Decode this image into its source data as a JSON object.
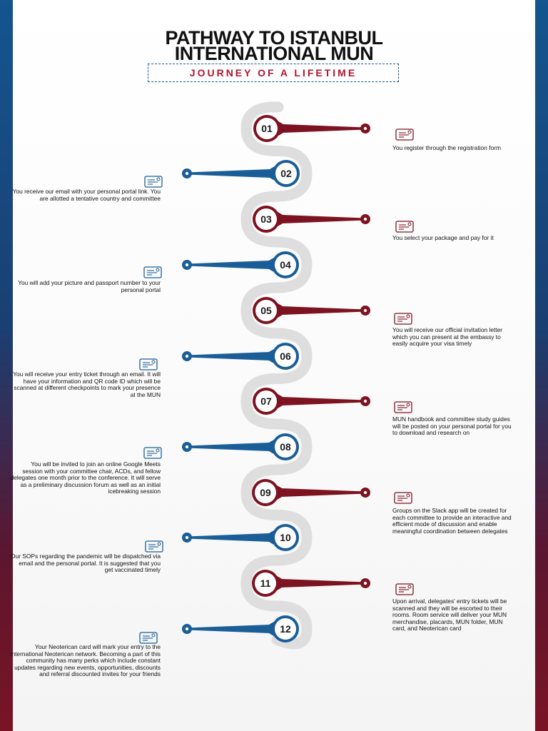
{
  "header": {
    "title_line1": "PATHWAY TO ISTANBUL",
    "title_line2": "INTERNATIONAL MUN",
    "subtitle": "JOURNEY OF A LIFETIME"
  },
  "colors": {
    "maroon": "#7d1220",
    "blue": "#1b5e97",
    "road": "#dedede"
  },
  "steps": [
    {
      "number": "01",
      "side": "right",
      "color": "maroon",
      "icon": "registration-form-icon",
      "text": "You register through the registration form"
    },
    {
      "number": "02",
      "side": "left",
      "color": "blue",
      "icon": "email-icon",
      "text": "You receive our email with your personal portal link. You are allotted a tentative country and committee"
    },
    {
      "number": "03",
      "side": "right",
      "color": "maroon",
      "icon": "package-payment-icon",
      "text": "You select your package and pay for it"
    },
    {
      "number": "04",
      "side": "left",
      "color": "blue",
      "icon": "id-card-icon",
      "text": "You will add your picture and passport number to your personal portal"
    },
    {
      "number": "05",
      "side": "right",
      "color": "maroon",
      "icon": "visa-icon",
      "text": "You will receive our official invitation letter which you can present at the embassy to easily acquire your visa timely"
    },
    {
      "number": "06",
      "side": "left",
      "color": "blue",
      "icon": "ticket-icon",
      "text": "You will receive your entry ticket through an email. It will have your information and QR code ID which will be scanned at different checkpoints to mark your presence at the MUN"
    },
    {
      "number": "07",
      "side": "right",
      "color": "maroon",
      "icon": "handbook-icon",
      "text": "MUN handbook and committee study guides will be posted on your personal portal for you to download and research on"
    },
    {
      "number": "08",
      "side": "left",
      "color": "blue",
      "icon": "online-meeting-icon",
      "text": "You will be invited to join an online Google Meets session with your committee chair, ACDs, and fellow delegates one month prior to the conference. It will serve as a preliminary discussion forum as well as an initial icebreaking session"
    },
    {
      "number": "09",
      "side": "right",
      "color": "maroon",
      "icon": "chat-group-icon",
      "text": "Groups on the Slack app will be created for each committee to provide an interactive and efficient mode of discussion and enable meaningful coordination between delegates"
    },
    {
      "number": "10",
      "side": "left",
      "color": "blue",
      "icon": "sanitizer-icon",
      "text": "Our SOPs regarding the pandemic will be dispatched via email and the personal portal. It is suggested that you get vaccinated timely"
    },
    {
      "number": "11",
      "side": "right",
      "color": "maroon",
      "icon": "reception-desk-icon",
      "text": "Upon arrival, delegates' entry tickets will be scanned and they will be escorted to their rooms. Room service will deliver your MUN merchandise, placards, MUN folder, MUN card, and Neoterican card"
    },
    {
      "number": "12",
      "side": "left",
      "color": "blue",
      "icon": "member-card-icon",
      "text": "Your Neoterican card will mark your entry to the international Neoterican network. Becoming a part of this community has many perks which include constant updates regarding new events, opportunities, discounts and referral discounted invites for your friends"
    }
  ]
}
